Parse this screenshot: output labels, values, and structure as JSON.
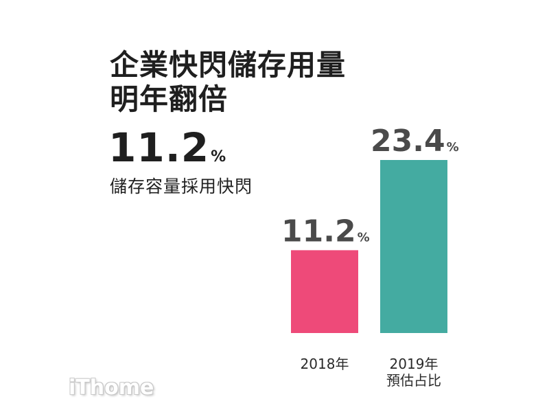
{
  "title_line1": "企業快閃儲存用量",
  "title_line2": "明年翻倍",
  "headline_stat": {
    "value": "11.2",
    "unit": "%"
  },
  "subtitle": "儲存容量採用快閃",
  "logo_text": "iThome",
  "colors": {
    "bar_2018": "#ee4a79",
    "bar_2019": "#44aba1",
    "text_dark": "#1f1f1f",
    "value_label": "#4a4a4a"
  },
  "chart_data": {
    "type": "bar",
    "title": "企業快閃儲存用量 明年翻倍",
    "categories": [
      "2018年",
      "2019年\n預估占比"
    ],
    "category_lines": [
      [
        "2018年"
      ],
      [
        "2019年",
        "預估占比"
      ]
    ],
    "values": [
      11.2,
      23.4
    ],
    "value_labels": [
      "11.2",
      "23.4"
    ],
    "unit": "%",
    "xlabel": "",
    "ylabel": "",
    "ylim": [
      0,
      23.4
    ],
    "grid": false,
    "legend": "none"
  }
}
